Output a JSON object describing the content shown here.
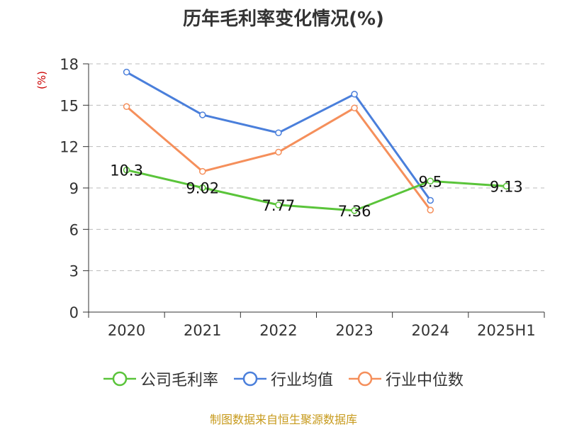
{
  "title": "历年毛利率变化情况(%)",
  "source_note": "制图数据来自恒生聚源数据库",
  "colors": {
    "axis": "#333333",
    "grid": "#bbbbbb",
    "company": "#5ac43a",
    "industry_avg": "#4a7fdb",
    "industry_median": "#f58f5b"
  },
  "chart_data": {
    "type": "line",
    "title": "历年毛利率变化情况(%)",
    "ylabel": "(%)",
    "xlabel": "",
    "categories": [
      "2020",
      "2021",
      "2022",
      "2023",
      "2024",
      "2025H1"
    ],
    "ylim": [
      0,
      18
    ],
    "yticks": [
      0,
      3,
      6,
      9,
      12,
      15,
      18
    ],
    "grid": true,
    "legend_position": "bottom",
    "series": [
      {
        "name": "公司毛利率",
        "values": [
          10.3,
          9.02,
          7.77,
          7.36,
          9.5,
          9.13
        ],
        "labels": [
          "10.3",
          "9.02",
          "7.77",
          "7.36",
          "9.5",
          "9.13"
        ],
        "color_key": "company"
      },
      {
        "name": "行业均值",
        "values": [
          17.4,
          14.3,
          13.0,
          15.8,
          8.1,
          null
        ],
        "color_key": "industry_avg"
      },
      {
        "name": "行业中位数",
        "values": [
          14.9,
          10.2,
          11.6,
          14.8,
          7.4,
          null
        ],
        "color_key": "industry_median"
      }
    ]
  }
}
